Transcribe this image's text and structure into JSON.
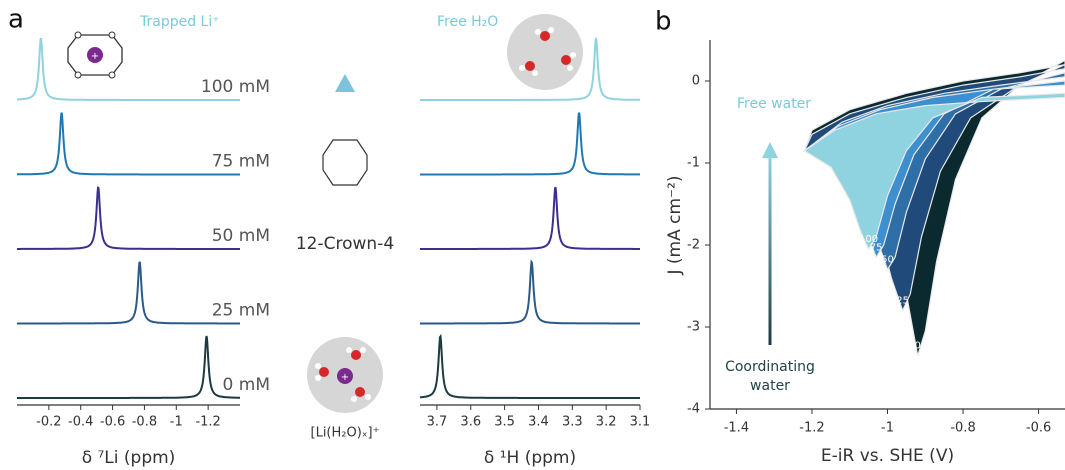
{
  "panel_labels": [
    "a",
    "b"
  ],
  "annotations": {
    "trapped": "Trapped Li⁺",
    "free_h2o": "Free H₂O",
    "crown": "12-Crown-4",
    "li_water": "[Li(H₂O)ₓ]⁺"
  },
  "chart_data": [
    {
      "type": "line",
      "xlabel": "δ ⁷Li (ppm)",
      "xlim": [
        0,
        -1.4
      ],
      "xticks": [
        -0.2,
        -0.4,
        -0.6,
        -0.8,
        -1.0,
        -1.2
      ],
      "series": [
        {
          "name": "100 mM",
          "color": "#8fd3e0",
          "values": [
            -0.15
          ]
        },
        {
          "name": "75 mM",
          "color": "#1f78b4",
          "values": [
            -0.28
          ]
        },
        {
          "name": "50 mM",
          "color": "#3b2f8f",
          "values": [
            -0.51
          ]
        },
        {
          "name": "25 mM",
          "color": "#2b5a8a",
          "values": [
            -0.77
          ]
        },
        {
          "name": "0 mM",
          "color": "#1d3a40",
          "values": [
            -1.19
          ]
        }
      ]
    },
    {
      "type": "line",
      "xlabel": "δ ¹H (ppm)",
      "xlim": [
        3.75,
        3.1
      ],
      "xticks": [
        3.7,
        3.6,
        3.5,
        3.4,
        3.3,
        3.2,
        3.1
      ],
      "series": [
        {
          "color": "#8fd3e0",
          "values": [
            3.23
          ]
        },
        {
          "color": "#1f78b4",
          "values": [
            3.28
          ]
        },
        {
          "color": "#3b2f8f",
          "values": [
            3.35
          ]
        },
        {
          "color": "#2b5a8a",
          "values": [
            3.42
          ]
        },
        {
          "color": "#1d3a40",
          "values": [
            3.69
          ]
        }
      ]
    },
    {
      "type": "area",
      "xlabel": "E-iR vs. SHE (V)",
      "ylabel": "J (mA cm⁻²)",
      "xlim": [
        -1.47,
        -0.53
      ],
      "xticks": [
        -1.4,
        -1.2,
        -1.0,
        -0.8,
        -0.6
      ],
      "ylim": [
        -4,
        0.5
      ],
      "yticks": [
        0,
        -1,
        -2,
        -3,
        -4
      ],
      "annotations": {
        "free": "Free water",
        "coord1": "Coordinating",
        "coord2": "water"
      },
      "series": [
        {
          "name": "0",
          "color": "#0b2a30",
          "x": [
            -1.22,
            -1.15,
            -1.08,
            -1.0,
            -0.96,
            -0.94,
            -0.92,
            -0.9,
            -0.87,
            -0.82,
            -0.75,
            -0.65,
            -0.53,
            -0.53,
            -0.65,
            -0.8,
            -0.95,
            -1.1,
            -1.2,
            -1.22
          ],
          "values": [
            -0.85,
            -1.05,
            -1.35,
            -1.85,
            -2.35,
            -2.85,
            -3.35,
            -3.05,
            -2.2,
            -1.2,
            -0.45,
            -0.05,
            0.25,
            0.2,
            0.1,
            0.0,
            -0.15,
            -0.35,
            -0.6,
            -0.85
          ]
        },
        {
          "name": "25",
          "color": "#1f4a7a",
          "x": [
            -1.22,
            -1.15,
            -1.08,
            -1.02,
            -0.99,
            -0.96,
            -0.94,
            -0.91,
            -0.86,
            -0.78,
            -0.65,
            -0.53,
            -0.53,
            -0.65,
            -0.8,
            -0.95,
            -1.1,
            -1.2,
            -1.22
          ],
          "values": [
            -0.85,
            -1.05,
            -1.35,
            -1.85,
            -2.4,
            -2.8,
            -2.6,
            -1.9,
            -1.1,
            -0.45,
            -0.05,
            0.2,
            0.15,
            0.05,
            -0.05,
            -0.2,
            -0.4,
            -0.65,
            -0.85
          ]
        },
        {
          "name": "50",
          "color": "#2f6fa8",
          "x": [
            -1.22,
            -1.15,
            -1.08,
            -1.03,
            -1.0,
            -0.98,
            -0.95,
            -0.9,
            -0.82,
            -0.7,
            -0.53,
            -0.53,
            -0.7,
            -0.85,
            -1.0,
            -1.12,
            -1.22
          ],
          "values": [
            -0.85,
            -1.05,
            -1.4,
            -1.9,
            -2.3,
            -2.15,
            -1.6,
            -0.95,
            -0.4,
            -0.1,
            0.1,
            0.05,
            -0.05,
            -0.15,
            -0.3,
            -0.5,
            -0.85
          ]
        },
        {
          "name": "75",
          "color": "#3d8fd0",
          "x": [
            -1.22,
            -1.15,
            -1.09,
            -1.05,
            -1.03,
            -1.01,
            -0.98,
            -0.93,
            -0.85,
            -0.72,
            -0.53,
            -0.53,
            -0.72,
            -0.88,
            -1.02,
            -1.13,
            -1.22
          ],
          "values": [
            -0.85,
            -1.05,
            -1.45,
            -1.9,
            -2.15,
            -2.0,
            -1.5,
            -0.9,
            -0.4,
            -0.1,
            0.0,
            -0.05,
            -0.1,
            -0.2,
            -0.35,
            -0.55,
            -0.85
          ]
        },
        {
          "name": "100",
          "color": "#8fd3e0",
          "x": [
            -1.22,
            -1.15,
            -1.1,
            -1.07,
            -1.05,
            -1.03,
            -1.0,
            -0.95,
            -0.88,
            -0.75,
            -0.53,
            -0.53,
            -0.75,
            -0.9,
            -1.03,
            -1.14,
            -1.22
          ],
          "values": [
            -0.85,
            -1.05,
            -1.45,
            -1.85,
            -2.05,
            -1.9,
            -1.4,
            -0.85,
            -0.45,
            -0.2,
            -0.15,
            -0.2,
            -0.25,
            -0.3,
            -0.4,
            -0.6,
            -0.85
          ]
        }
      ]
    }
  ]
}
